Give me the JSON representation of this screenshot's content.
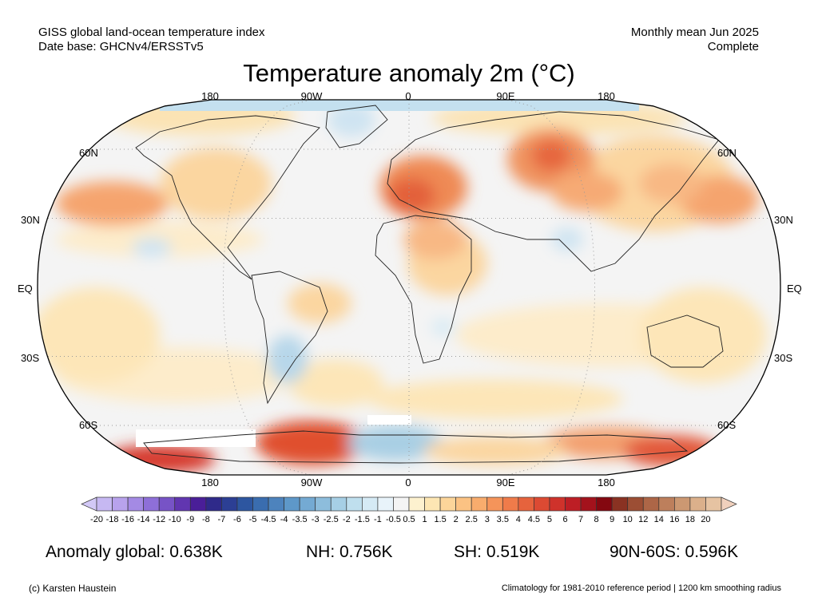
{
  "header": {
    "left_line1": "GISS global land-ocean temperature index",
    "left_line2": "Date base: GHCNv4/ERSSTv5",
    "right_line1": "Monthly mean Jun 2025",
    "right_line2": "Complete"
  },
  "title": "Temperature anomaly 2m (°C)",
  "map": {
    "projection": "Robinson",
    "lon_labels_top": [
      "180",
      "90W",
      "0",
      "90E",
      "180"
    ],
    "lon_labels_bottom": [
      "180",
      "90W",
      "0",
      "90E",
      "180"
    ],
    "lat_labels_left": [
      "60N",
      "30N",
      "EQ",
      "30S",
      "60S"
    ],
    "lat_labels_right": [
      "60N",
      "30N",
      "EQ",
      "30S",
      "60S"
    ]
  },
  "colorbar": {
    "labels": [
      "-20",
      "-18",
      "-16",
      "-14",
      "-12",
      "-10",
      "-9",
      "-8",
      "-7",
      "-6",
      "-5",
      "-4.5",
      "-4",
      "-3.5",
      "-3",
      "-2.5",
      "-2",
      "-1.5",
      "-1",
      "-0.5",
      "0.5",
      "1",
      "1.5",
      "2",
      "2.5",
      "3",
      "3.5",
      "4",
      "4.5",
      "5",
      "6",
      "7",
      "8",
      "9",
      "10",
      "12",
      "14",
      "16",
      "18",
      "20"
    ],
    "colors": [
      "#c6b8f2",
      "#b8a2ec",
      "#a48ae4",
      "#8e6fd8",
      "#7753c6",
      "#6136b0",
      "#4a1e98",
      "#2f2a8a",
      "#2c3f94",
      "#2d56a0",
      "#3a6daf",
      "#4d83bd",
      "#5e98c9",
      "#74aad3",
      "#8dbddc",
      "#a6cfe5",
      "#bfdfee",
      "#d5eaf5",
      "#e8f3fa",
      "#f4f4f4",
      "#fdf1cf",
      "#fde6b3",
      "#fcd59a",
      "#fbc283",
      "#f8ac6d",
      "#f5945a",
      "#ef7b4a",
      "#e6633d",
      "#dc4a33",
      "#cf322b",
      "#bd1e25",
      "#a3121c",
      "#840810",
      "#8a3222",
      "#9c4e34",
      "#ad6647",
      "#bd7f5c",
      "#cc9872",
      "#dbb08b",
      "#e6c3a2"
    ]
  },
  "stats": {
    "global": "Anomaly global: 0.638K",
    "nh": "NH: 0.756K",
    "sh": "SH: 0.519K",
    "band": "90N-60S: 0.596K"
  },
  "footer": {
    "copyright": "(c) Karsten Haustein",
    "note": "Climatology for 1981-2010 reference period | 1200 km smoothing radius"
  }
}
